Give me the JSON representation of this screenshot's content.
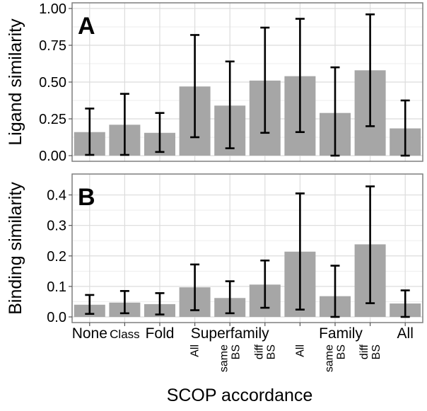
{
  "chart_data": [
    {
      "type": "bar",
      "panel_label": "A",
      "ylabel": "Ligand similarity",
      "ylim": [
        0,
        1.0
      ],
      "yticks": [
        "0.00",
        "0.25",
        "0.50",
        "0.75",
        "1.00"
      ],
      "ytick_values": [
        0,
        0.25,
        0.5,
        0.75,
        1.0
      ],
      "grid": true,
      "values": [
        0.16,
        0.21,
        0.155,
        0.47,
        0.34,
        0.51,
        0.54,
        0.29,
        0.58,
        0.185
      ],
      "err_low": [
        0.005,
        0.005,
        0.025,
        0.125,
        0.05,
        0.155,
        0.16,
        0.0,
        0.2,
        0.0
      ],
      "err_high": [
        0.32,
        0.42,
        0.29,
        0.82,
        0.64,
        0.87,
        0.93,
        0.6,
        0.96,
        0.375
      ]
    },
    {
      "type": "bar",
      "panel_label": "B",
      "ylabel": "Binding similarity",
      "ylim": [
        0,
        0.45
      ],
      "yticks": [
        "0.0",
        "0.1",
        "0.2",
        "0.3",
        "0.4"
      ],
      "ytick_values": [
        0,
        0.1,
        0.2,
        0.3,
        0.4
      ],
      "grid": true,
      "values": [
        0.04,
        0.047,
        0.042,
        0.097,
        0.062,
        0.106,
        0.214,
        0.068,
        0.238,
        0.044
      ],
      "err_low": [
        0.01,
        0.012,
        0.008,
        0.022,
        0.012,
        0.03,
        0.024,
        0.0,
        0.045,
        0.0
      ],
      "err_high": [
        0.072,
        0.085,
        0.078,
        0.172,
        0.117,
        0.185,
        0.405,
        0.168,
        0.428,
        0.087
      ]
    }
  ],
  "x_axis": {
    "title": "SCOP accordance",
    "groups": [
      {
        "label": "None",
        "small": false
      },
      {
        "label": "Class",
        "small": true
      },
      {
        "label": "Fold",
        "small": false
      },
      {
        "label": "Superfamily",
        "small": false
      },
      {
        "label": "Family",
        "small": false
      },
      {
        "label": "All",
        "small": false
      }
    ],
    "sub_labels": [
      {
        "bar": 3,
        "lines": [
          "All"
        ]
      },
      {
        "bar": 4,
        "lines": [
          "same",
          "BS"
        ]
      },
      {
        "bar": 5,
        "lines": [
          "diff",
          "BS"
        ]
      },
      {
        "bar": 6,
        "lines": [
          "All"
        ]
      },
      {
        "bar": 7,
        "lines": [
          "same",
          "BS"
        ]
      },
      {
        "bar": 8,
        "lines": [
          "diff",
          "BS"
        ]
      }
    ]
  },
  "colors": {
    "bar": "#a6a6a6",
    "panel_background": "#ffffff",
    "panel_border": "#7f7f7f",
    "grid_major": "#dcdcdc",
    "grid_minor": "#eeeeee",
    "error_bar": "#000000"
  }
}
